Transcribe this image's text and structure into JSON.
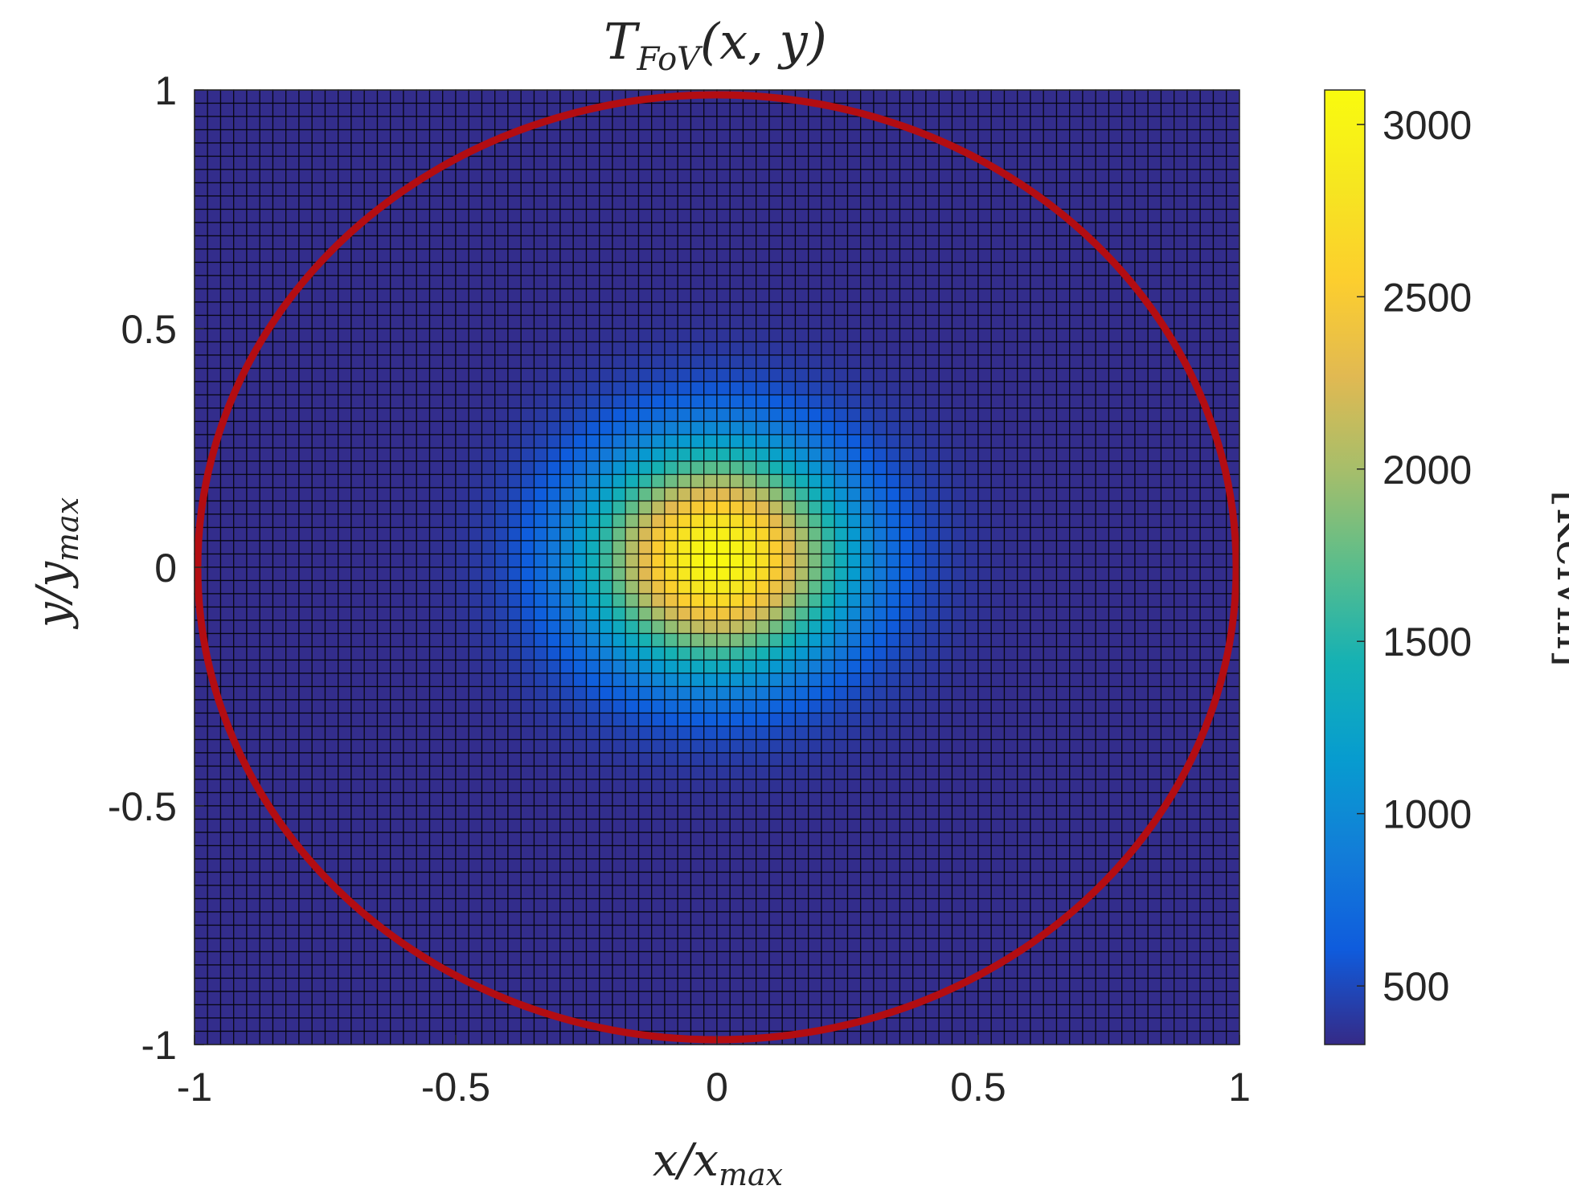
{
  "chart_data": {
    "type": "heatmap",
    "title": {
      "base": "T",
      "sub": "FoV",
      "rest": "(x, y)"
    },
    "xlabel": {
      "base": "x/x",
      "sub": "max"
    },
    "ylabel": {
      "base": "y/y",
      "sub": "max"
    },
    "xlim": [
      -1,
      1
    ],
    "ylim": [
      -1,
      1
    ],
    "xticks": [
      -1,
      -0.5,
      0,
      0.5,
      1
    ],
    "xtick_labels": [
      "-1",
      "-0.5",
      "0",
      "0.5",
      "1"
    ],
    "yticks": [
      -1,
      -0.5,
      0,
      0.5,
      1
    ],
    "ytick_labels": [
      "-1",
      "-0.5",
      "0",
      "0.5",
      "1"
    ],
    "grid_cells": [
      80,
      72
    ],
    "field": {
      "model": "gaussian",
      "center": [
        0,
        0.02
      ],
      "background_K": 345,
      "peak_K": 3080,
      "sigma_x": 0.17,
      "sigma_y": 0.16
    },
    "colorbar": {
      "label": "[Kelvin]",
      "colormap": "parula",
      "range": [
        330,
        3100
      ],
      "ticks": [
        500,
        1000,
        1500,
        2000,
        2500,
        3000
      ],
      "tick_labels": [
        "500",
        "1000",
        "1500",
        "2000",
        "2500",
        "3000"
      ]
    },
    "overlay": {
      "shape": "ellipse",
      "center": [
        0,
        0
      ],
      "radius_x": 1.0,
      "radius_y": 1.0,
      "color": "#b30d12"
    },
    "grid_line_color": "#000000"
  }
}
